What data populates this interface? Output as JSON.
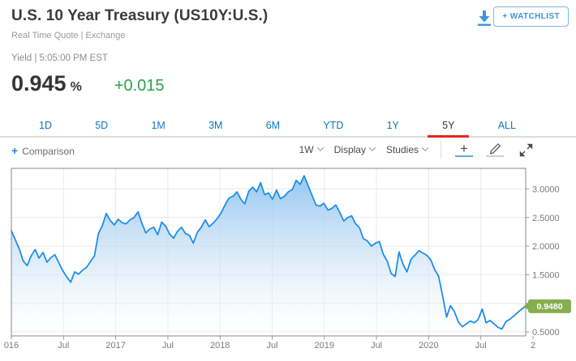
{
  "header": {
    "title": "U.S. 10 Year Treasury (US10Y:U.S.)",
    "subtitle": "Real Time Quote | Exchange",
    "quote_time_label": "Yield | 5:05:00 PM EST",
    "price": "0.945",
    "price_unit": "%",
    "change": "+0.015",
    "watchlist_button": "+ WATCHLIST",
    "icons": [
      "download-icon"
    ]
  },
  "range_tabs": {
    "items": [
      "1D",
      "5D",
      "1M",
      "3M",
      "6M",
      "YTD",
      "1Y",
      "5Y",
      "ALL"
    ],
    "selected": "5Y"
  },
  "toolbar": {
    "comparison_plus": "+",
    "comparison_label": "Comparison",
    "dropdowns": [
      {
        "label": "1W"
      },
      {
        "label": "Display"
      },
      {
        "label": "Studies"
      }
    ],
    "icons": [
      "crosshair-icon",
      "draw-icon",
      "expand-icon"
    ],
    "active_tool": "crosshair"
  },
  "colors": {
    "tab_blue": "#0e76bd",
    "selected_tab_underline": "#e8251d",
    "price_change_green": "#2da14d",
    "accent_blue": "#3d94db",
    "line_blue": "#1f8ee9",
    "area_fill_top": "#8ec3ef",
    "area_fill_bottom": "#ffffff",
    "badge_green": "#86ae4f",
    "grid_gray": "#e9e9e9",
    "plot_border": "#8a8a8a",
    "axis_text": "#7a7a7a"
  },
  "chart_data": {
    "type": "area",
    "title": "U.S. 10 Year Treasury yield, 5-year range, 1W interval",
    "x_range": [
      "2016-01",
      "2020-12"
    ],
    "x_tick_labels": [
      "016",
      "Jul",
      "2017",
      "Jul",
      "2018",
      "Jul",
      "2019",
      "Jul",
      "2020",
      "Jul",
      "2"
    ],
    "y_ticks": [
      {
        "value": 3.0,
        "label": "3.0000"
      },
      {
        "value": 2.5,
        "label": "2.5000"
      },
      {
        "value": 2.0,
        "label": "2.0000"
      },
      {
        "value": 1.5,
        "label": "1.5000"
      },
      {
        "value": 1.0,
        "label": ""
      },
      {
        "value": 0.5,
        "label": "0.5000"
      }
    ],
    "ylim": [
      0.43,
      3.36
    ],
    "grid": true,
    "legend": "none",
    "last_value": 0.948,
    "last_value_label": "0.9480",
    "values": [
      2.27,
      2.11,
      1.95,
      1.74,
      1.66,
      1.83,
      1.94,
      1.79,
      1.89,
      1.72,
      1.8,
      1.85,
      1.71,
      1.57,
      1.46,
      1.37,
      1.55,
      1.51,
      1.58,
      1.63,
      1.73,
      1.83,
      2.22,
      2.36,
      2.57,
      2.45,
      2.37,
      2.47,
      2.41,
      2.39,
      2.46,
      2.5,
      2.6,
      2.4,
      2.23,
      2.3,
      2.33,
      2.2,
      2.42,
      2.35,
      2.21,
      2.14,
      2.26,
      2.33,
      2.22,
      2.19,
      2.05,
      2.24,
      2.33,
      2.46,
      2.34,
      2.4,
      2.48,
      2.58,
      2.72,
      2.84,
      2.87,
      2.95,
      2.82,
      2.74,
      2.96,
      3.03,
      2.95,
      3.11,
      2.9,
      2.93,
      2.82,
      2.98,
      2.83,
      2.87,
      2.95,
      2.99,
      3.15,
      3.08,
      3.23,
      3.06,
      2.89,
      2.72,
      2.7,
      2.75,
      2.63,
      2.66,
      2.72,
      2.59,
      2.44,
      2.5,
      2.53,
      2.39,
      2.32,
      2.13,
      2.09,
      2.0,
      2.05,
      2.08,
      1.86,
      1.74,
      1.52,
      1.47,
      1.9,
      1.68,
      1.55,
      1.77,
      1.84,
      1.92,
      1.88,
      1.84,
      1.76,
      1.59,
      1.47,
      1.13,
      0.76,
      0.96,
      0.85,
      0.67,
      0.59,
      0.64,
      0.69,
      0.66,
      0.72,
      0.9,
      0.66,
      0.7,
      0.64,
      0.58,
      0.55,
      0.68,
      0.72,
      0.78,
      0.84,
      0.9,
      0.948
    ]
  }
}
